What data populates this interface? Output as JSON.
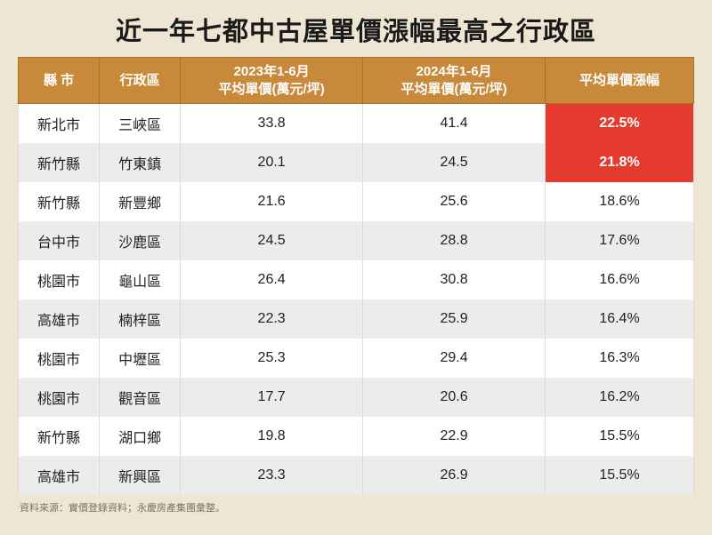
{
  "title": "近一年七都中古屋單價漲幅最高之行政區",
  "columns": [
    "縣 市",
    "行政區",
    "2023年1-6月\n平均單價(萬元/坪)",
    "2024年1-6月\n平均單價(萬元/坪)",
    "平均單價漲幅"
  ],
  "rows": [
    {
      "city": "新北市",
      "district": "三峽區",
      "p2023": "33.8",
      "p2024": "41.4",
      "diff": "22.5%",
      "highlight": true
    },
    {
      "city": "新竹縣",
      "district": "竹東鎮",
      "p2023": "20.1",
      "p2024": "24.5",
      "diff": "21.8%",
      "highlight": true
    },
    {
      "city": "新竹縣",
      "district": "新豐鄉",
      "p2023": "21.6",
      "p2024": "25.6",
      "diff": "18.6%",
      "highlight": false
    },
    {
      "city": "台中市",
      "district": "沙鹿區",
      "p2023": "24.5",
      "p2024": "28.8",
      "diff": "17.6%",
      "highlight": false
    },
    {
      "city": "桃園市",
      "district": "龜山區",
      "p2023": "26.4",
      "p2024": "30.8",
      "diff": "16.6%",
      "highlight": false
    },
    {
      "city": "高雄市",
      "district": "楠梓區",
      "p2023": "22.3",
      "p2024": "25.9",
      "diff": "16.4%",
      "highlight": false
    },
    {
      "city": "桃園市",
      "district": "中壢區",
      "p2023": "25.3",
      "p2024": "29.4",
      "diff": "16.3%",
      "highlight": false
    },
    {
      "city": "桃園市",
      "district": "觀音區",
      "p2023": "17.7",
      "p2024": "20.6",
      "diff": "16.2%",
      "highlight": false
    },
    {
      "city": "新竹縣",
      "district": "湖口鄉",
      "p2023": "19.8",
      "p2024": "22.9",
      "diff": "15.5%",
      "highlight": false
    },
    {
      "city": "高雄市",
      "district": "新興區",
      "p2023": "23.3",
      "p2024": "26.9",
      "diff": "15.5%",
      "highlight": false
    }
  ],
  "source": "資料來源：實價登錄資料；永慶房產集團彙整。",
  "colors": {
    "page_bg": "#eee6d3",
    "header_bg": "#c88a3a",
    "header_border": "#a8722e",
    "row_odd": "#ffffff",
    "row_even": "#ececec",
    "highlight_bg": "#e53a2e",
    "highlight_text": "#ffffff",
    "text": "#222222",
    "source_text": "#7a7468"
  },
  "font_sizes": {
    "title": 29,
    "header": 15,
    "cell": 16,
    "source": 11
  }
}
